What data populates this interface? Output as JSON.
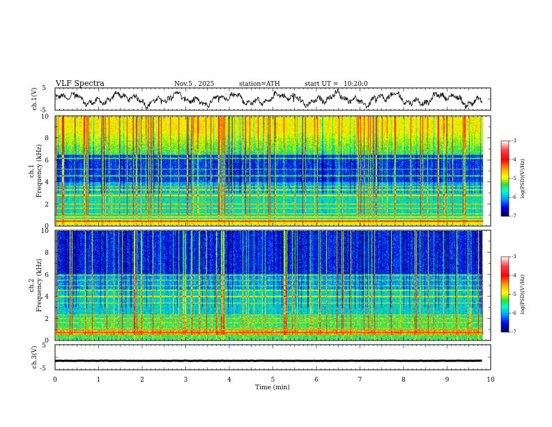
{
  "header": {
    "title": "VLF Spectra",
    "date": "Nov.5 , 2025",
    "station": "station=ATH",
    "start_label": "start UT =",
    "start_time": "10:20:0"
  },
  "colors": {
    "spectrogram_ramp": [
      "#000080",
      "#0000ff",
      "#00aaff",
      "#00ffcc",
      "#33dd33",
      "#ccff00",
      "#ffff00",
      "#ff8800",
      "#ff0000",
      "#ffffff"
    ],
    "waveform": "#000000"
  },
  "chart_data": [
    {
      "type": "line",
      "name": "ch1-waveform",
      "ylabel": "ch.1(V)",
      "ylim": [
        -5,
        5
      ],
      "yticks": [
        "5",
        "-5"
      ],
      "xlim": [
        0,
        10
      ],
      "note": "noisy waveform oscillating roughly between -3 and 3 V"
    },
    {
      "type": "heatmap",
      "name": "ch1-spectrogram",
      "ylabel_line1": "ch.1",
      "ylabel_line2": "Frequency (kHz)",
      "ylim": [
        0,
        10
      ],
      "yticks": [
        "0",
        "2",
        "4",
        "6",
        "8",
        "10"
      ],
      "xlim": [
        0,
        9.8
      ],
      "colorbar": {
        "label": "log(PSD)(V²/Hz)",
        "range": [
          -7,
          -3
        ],
        "ticks": [
          "-3",
          "-4",
          "-5",
          "-6",
          "-7"
        ]
      }
    },
    {
      "type": "heatmap",
      "name": "ch2-spectrogram",
      "ylabel_line1": "ch.2",
      "ylabel_line2": "Frequency (kHz)",
      "ylim": [
        0,
        10
      ],
      "yticks": [
        "0",
        "2",
        "4",
        "6",
        "8",
        "10"
      ],
      "xlim": [
        0,
        9.8
      ],
      "colorbar": {
        "label": "log(PSD)(V²/Hz)",
        "range": [
          -7,
          -3
        ],
        "ticks": [
          "-3",
          "-4",
          "-5",
          "-6",
          "-7"
        ]
      }
    },
    {
      "type": "line",
      "name": "ch3-waveform",
      "ylabel": "ch.3(V)",
      "ylim": [
        -5,
        5
      ],
      "yticks": [
        "5",
        "-5"
      ],
      "xlim": [
        0,
        10
      ],
      "note": "nearly flat trace at about -1.5 V"
    }
  ],
  "x_axis": {
    "label": "Time (min)",
    "range": [
      0,
      10
    ],
    "ticks": [
      "0",
      "1",
      "2",
      "3",
      "4",
      "5",
      "6",
      "7",
      "8",
      "9",
      "10"
    ]
  }
}
